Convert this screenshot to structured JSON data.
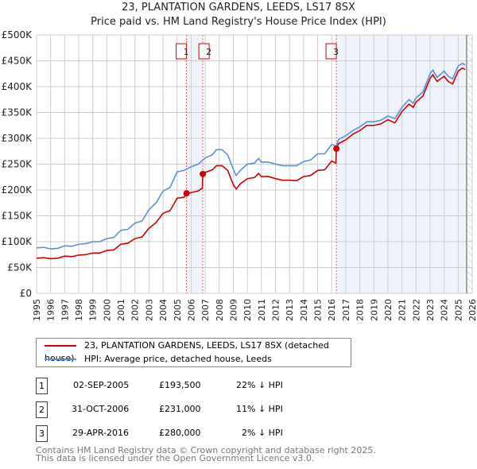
{
  "chart_data": {
    "type": "line",
    "title": "23, PLANTATION GARDENS, LEEDS, LS17 8SX",
    "subtitle": "Price paid vs. HM Land Registry's House Price Index (HPI)",
    "xlim": [
      1995,
      2026
    ],
    "ylim": [
      0,
      500000
    ],
    "yticks": [
      {
        "v": 0,
        "label": "£0"
      },
      {
        "v": 50000,
        "label": "£50K"
      },
      {
        "v": 100000,
        "label": "£100K"
      },
      {
        "v": 150000,
        "label": "£150K"
      },
      {
        "v": 200000,
        "label": "£200K"
      },
      {
        "v": 250000,
        "label": "£250K"
      },
      {
        "v": 300000,
        "label": "£300K"
      },
      {
        "v": 350000,
        "label": "£350K"
      },
      {
        "v": 400000,
        "label": "£400K"
      },
      {
        "v": 450000,
        "label": "£450K"
      },
      {
        "v": 500000,
        "label": "£500K"
      }
    ],
    "xticks": [
      "1995",
      "1996",
      "1997",
      "1998",
      "1999",
      "2000",
      "2001",
      "2002",
      "2003",
      "2004",
      "2005",
      "2006",
      "2007",
      "2008",
      "2009",
      "2010",
      "2011",
      "2012",
      "2013",
      "2014",
      "2015",
      "2016",
      "2017",
      "2018",
      "2019",
      "2020",
      "2021",
      "2022",
      "2023",
      "2024",
      "2025",
      "2026"
    ],
    "grid": true,
    "series": [
      {
        "name": "23, PLANTATION GARDENS, LEEDS, LS17 8SX (detached house)",
        "color": "#cc0000",
        "points": [
          [
            1995,
            68
          ],
          [
            1995.5,
            69
          ],
          [
            1996,
            67
          ],
          [
            1996.5,
            68
          ],
          [
            1997,
            72
          ],
          [
            1997.5,
            71
          ],
          [
            1998,
            74
          ],
          [
            1998.5,
            75
          ],
          [
            1999,
            78
          ],
          [
            1999.5,
            78
          ],
          [
            2000,
            83
          ],
          [
            2000.5,
            84
          ],
          [
            2001,
            95
          ],
          [
            2001.5,
            97
          ],
          [
            2002,
            106
          ],
          [
            2002.5,
            109
          ],
          [
            2003,
            126
          ],
          [
            2003.5,
            137
          ],
          [
            2004,
            155
          ],
          [
            2004.5,
            160
          ],
          [
            2005,
            184
          ],
          [
            2005.5,
            186
          ],
          [
            2005.67,
            193.5
          ],
          [
            2006,
            195
          ],
          [
            2006.5,
            198
          ],
          [
            2006.8,
            204
          ],
          [
            2006.83,
            231
          ],
          [
            2007,
            234
          ],
          [
            2007.5,
            239
          ],
          [
            2007.8,
            247
          ],
          [
            2008.2,
            247
          ],
          [
            2008.6,
            238
          ],
          [
            2009,
            210
          ],
          [
            2009.2,
            202
          ],
          [
            2009.5,
            212
          ],
          [
            2010,
            222
          ],
          [
            2010.5,
            224
          ],
          [
            2010.8,
            232
          ],
          [
            2011,
            226
          ],
          [
            2011.5,
            226
          ],
          [
            2012,
            222
          ],
          [
            2012.5,
            219
          ],
          [
            2013,
            219
          ],
          [
            2013.5,
            218
          ],
          [
            2014,
            226
          ],
          [
            2014.5,
            228
          ],
          [
            2015,
            238
          ],
          [
            2015.5,
            239
          ],
          [
            2016,
            256
          ],
          [
            2016.3,
            252
          ],
          [
            2016.33,
            280
          ],
          [
            2016.5,
            290
          ],
          [
            2017,
            297
          ],
          [
            2017.5,
            308
          ],
          [
            2018,
            315
          ],
          [
            2018.5,
            325
          ],
          [
            2019,
            325
          ],
          [
            2019.5,
            328
          ],
          [
            2020,
            336
          ],
          [
            2020.5,
            330
          ],
          [
            2021,
            352
          ],
          [
            2021.5,
            366
          ],
          [
            2021.8,
            360
          ],
          [
            2022,
            370
          ],
          [
            2022.5,
            382
          ],
          [
            2023,
            416
          ],
          [
            2023.2,
            423
          ],
          [
            2023.5,
            410
          ],
          [
            2024,
            420
          ],
          [
            2024.3,
            410
          ],
          [
            2024.6,
            405
          ],
          [
            2025,
            430
          ],
          [
            2025.3,
            436
          ],
          [
            2025.5,
            433
          ]
        ]
      },
      {
        "name": "HPI: Average price, detached house, Leeds",
        "color": "#5b8fd6",
        "points": [
          [
            1995,
            88
          ],
          [
            1995.5,
            89
          ],
          [
            1996,
            86
          ],
          [
            1996.5,
            87
          ],
          [
            1997,
            92
          ],
          [
            1997.5,
            91
          ],
          [
            1998,
            95
          ],
          [
            1998.5,
            96
          ],
          [
            1999,
            100
          ],
          [
            1999.5,
            100
          ],
          [
            2000,
            106
          ],
          [
            2000.5,
            108
          ],
          [
            2001,
            122
          ],
          [
            2001.5,
            124
          ],
          [
            2002,
            136
          ],
          [
            2002.5,
            140
          ],
          [
            2003,
            162
          ],
          [
            2003.5,
            175
          ],
          [
            2004,
            198
          ],
          [
            2004.5,
            205
          ],
          [
            2005,
            235
          ],
          [
            2005.5,
            238
          ],
          [
            2006,
            245
          ],
          [
            2006.5,
            250
          ],
          [
            2007,
            262
          ],
          [
            2007.5,
            268
          ],
          [
            2007.8,
            278
          ],
          [
            2008.2,
            278
          ],
          [
            2008.6,
            268
          ],
          [
            2009,
            240
          ],
          [
            2009.2,
            228
          ],
          [
            2009.5,
            238
          ],
          [
            2010,
            250
          ],
          [
            2010.5,
            252
          ],
          [
            2010.8,
            261
          ],
          [
            2011,
            254
          ],
          [
            2011.5,
            254
          ],
          [
            2012,
            250
          ],
          [
            2012.5,
            247
          ],
          [
            2013,
            247
          ],
          [
            2013.5,
            247
          ],
          [
            2014,
            255
          ],
          [
            2014.5,
            258
          ],
          [
            2015,
            270
          ],
          [
            2015.5,
            270
          ],
          [
            2016,
            288
          ],
          [
            2016.3,
            285
          ],
          [
            2016.5,
            298
          ],
          [
            2017,
            305
          ],
          [
            2017.5,
            315
          ],
          [
            2018,
            322
          ],
          [
            2018.5,
            332
          ],
          [
            2019,
            332
          ],
          [
            2019.5,
            335
          ],
          [
            2020,
            343
          ],
          [
            2020.5,
            338
          ],
          [
            2021,
            360
          ],
          [
            2021.5,
            375
          ],
          [
            2021.8,
            368
          ],
          [
            2022,
            378
          ],
          [
            2022.5,
            390
          ],
          [
            2023,
            425
          ],
          [
            2023.2,
            432
          ],
          [
            2023.5,
            418
          ],
          [
            2024,
            430
          ],
          [
            2024.3,
            420
          ],
          [
            2024.6,
            415
          ],
          [
            2025,
            440
          ],
          [
            2025.3,
            445
          ],
          [
            2025.5,
            442
          ]
        ]
      }
    ],
    "value_unit": "thousands GBP",
    "sales": [
      {
        "label": "1",
        "x": 2005.67,
        "y": 193.5
      },
      {
        "label": "2",
        "x": 2006.83,
        "y": 231
      },
      {
        "label": "3",
        "x": 2016.33,
        "y": 280
      }
    ],
    "shaded_ranges": [
      [
        2005.67,
        2006.83
      ],
      [
        2016.33,
        2025.6
      ]
    ],
    "forecast_hatch_from": 2025.6
  },
  "legend": {
    "items": [
      "23, PLANTATION GARDENS, LEEDS, LS17 8SX (detached house)",
      "HPI: Average price, detached house, Leeds"
    ]
  },
  "table": [
    {
      "n": "1",
      "date": "02-SEP-2005",
      "price": "£193,500",
      "hpi": "22% ↓ HPI"
    },
    {
      "n": "2",
      "date": "31-OCT-2006",
      "price": "£231,000",
      "hpi": "11% ↓ HPI"
    },
    {
      "n": "3",
      "date": "29-APR-2016",
      "price": "£280,000",
      "hpi": "2% ↓ HPI"
    }
  ],
  "footer": [
    "Contains HM Land Registry data © Crown copyright and database right 2025.",
    "This data is licensed under the Open Government Licence v3.0."
  ]
}
